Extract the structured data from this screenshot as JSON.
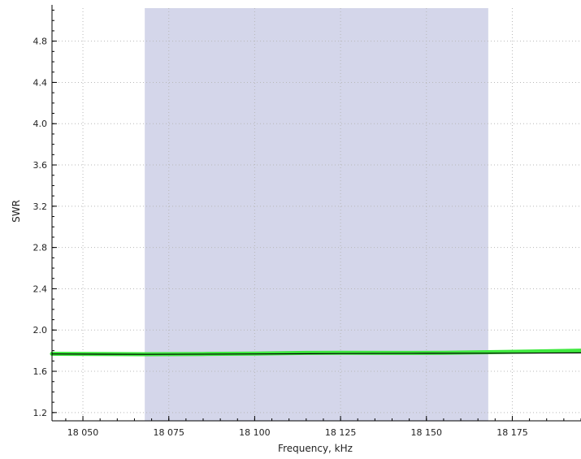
{
  "chart_data": {
    "type": "line",
    "xlabel": "Frequency, kHz",
    "ylabel": "SWR",
    "xlim": [
      18041,
      18195
    ],
    "ylim": [
      1.12,
      5.12
    ],
    "x_ticks": [
      {
        "value": 18050,
        "label": "18 050"
      },
      {
        "value": 18075,
        "label": "18 075"
      },
      {
        "value": 18100,
        "label": "18 100"
      },
      {
        "value": 18125,
        "label": "18 125"
      },
      {
        "value": 18150,
        "label": "18 150"
      },
      {
        "value": 18175,
        "label": "18 175"
      }
    ],
    "y_ticks": [
      {
        "value": 1.2,
        "label": "1.2"
      },
      {
        "value": 1.6,
        "label": "1.6"
      },
      {
        "value": 2.0,
        "label": "2.0"
      },
      {
        "value": 2.4,
        "label": "2.4"
      },
      {
        "value": 2.8,
        "label": "2.8"
      },
      {
        "value": 3.2,
        "label": "3.2"
      },
      {
        "value": 3.6,
        "label": "3.6"
      },
      {
        "value": 4.0,
        "label": "4.0"
      },
      {
        "value": 4.4,
        "label": "4.4"
      },
      {
        "value": 4.8,
        "label": "4.8"
      }
    ],
    "grid": true,
    "band": {
      "x0": 18068,
      "x1": 18168,
      "color": "#d4d6ea"
    },
    "series": [
      {
        "color": "#3ee83e",
        "x": [
          18041,
          18055,
          18068,
          18085,
          18100,
          18115,
          18125,
          18140,
          18155,
          18168,
          18180,
          18195
        ],
        "y": [
          1.77,
          1.768,
          1.766,
          1.768,
          1.772,
          1.778,
          1.78,
          1.778,
          1.78,
          1.785,
          1.792,
          1.8
        ]
      },
      {
        "color": "#000000",
        "x": [
          18041,
          18068,
          18100,
          18125,
          18150,
          18168,
          18195
        ],
        "y": [
          1.768,
          1.764,
          1.768,
          1.772,
          1.774,
          1.775,
          1.778
        ]
      }
    ]
  }
}
